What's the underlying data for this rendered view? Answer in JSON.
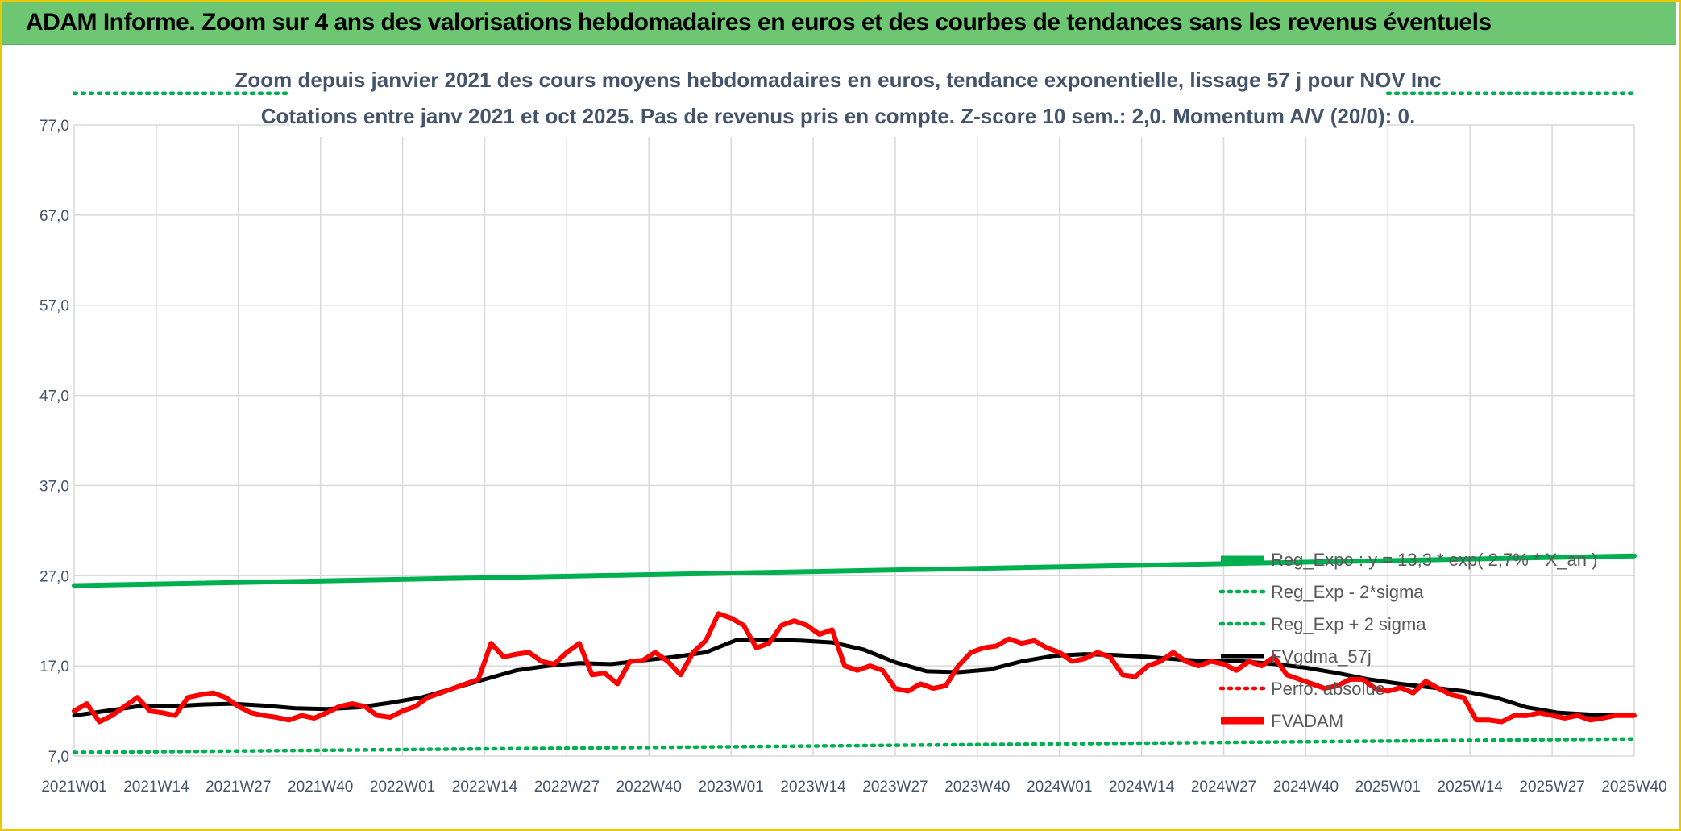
{
  "header": {
    "title": "ADAM Informe. Zoom sur 4 ans des valorisations hebdomadaires en euros et des courbes de tendances sans les revenus éventuels"
  },
  "chart_data": {
    "type": "line",
    "title_line1": "Zoom depuis janvier 2021 des cours moyens hebdomadaires en euros, tendance exponentielle, lissage 57 j pour NOV Inc",
    "title_line2": "Cotations entre janv 2021 et oct 2025. Pas de revenus pris en compte. Z-score 10 sem.: 2,0. Momentum A/V (20/0): 0.",
    "ylim": [
      7,
      77
    ],
    "y_ticks": [
      "77,0",
      "67,0",
      "57,0",
      "47,0",
      "37,0",
      "27,0",
      "17,0",
      "7,0"
    ],
    "y_tick_values": [
      77,
      67,
      57,
      47,
      37,
      27,
      17,
      7
    ],
    "x_ticks": [
      "2021W01",
      "2021W14",
      "2021W27",
      "2021W40",
      "2022W01",
      "2022W14",
      "2022W27",
      "2022W40",
      "2023W01",
      "2023W14",
      "2023W27",
      "2023W40",
      "2024W01",
      "2024W14",
      "2024W27",
      "2024W40",
      "2025W01",
      "2025W14",
      "2025W27",
      "2025W40"
    ],
    "x_range_weeks": [
      0,
      247
    ],
    "grid": true,
    "legend_position": "right",
    "series": [
      {
        "name": "Reg_Expo : y = 13,3 * exp( 2,7% * X_an )",
        "key": "reg",
        "color": "#00b050",
        "style": "solid-thick",
        "x": [
          0,
          247
        ],
        "values": [
          25.9,
          29.2
        ]
      },
      {
        "name": "Reg_Exp - 2*sigma",
        "key": "lower",
        "color": "#00b050",
        "style": "dotted",
        "x": [
          0,
          247
        ],
        "values": [
          7.4,
          8.9
        ]
      },
      {
        "name": "Reg_Exp + 2 sigma",
        "key": "upper",
        "color": "#00b050",
        "style": "dotted",
        "x": [
          0,
          247
        ],
        "values": [
          80.5,
          80.5
        ]
      },
      {
        "name": "FVgdma_57j",
        "key": "sma",
        "color": "#000000",
        "style": "solid",
        "x": [
          0,
          5,
          10,
          15,
          20,
          25,
          30,
          35,
          40,
          45,
          50,
          55,
          60,
          65,
          70,
          75,
          80,
          85,
          90,
          95,
          100,
          105,
          110,
          115,
          120,
          125,
          130,
          135,
          140,
          145,
          150,
          155,
          160,
          165,
          170,
          175,
          180,
          185,
          190,
          195,
          200,
          205,
          210,
          215,
          220,
          225,
          230,
          235,
          240,
          247
        ],
        "values": [
          11.5,
          12.0,
          12.5,
          12.5,
          12.7,
          12.8,
          12.6,
          12.3,
          12.2,
          12.4,
          12.9,
          13.5,
          14.5,
          15.5,
          16.5,
          17.0,
          17.3,
          17.2,
          17.6,
          18.0,
          18.5,
          19.9,
          19.9,
          19.8,
          19.6,
          18.8,
          17.4,
          16.4,
          16.3,
          16.6,
          17.5,
          18.1,
          18.3,
          18.2,
          18.0,
          17.7,
          17.5,
          17.5,
          17.2,
          16.8,
          16.2,
          15.5,
          15.0,
          14.6,
          14.2,
          13.5,
          12.4,
          11.8,
          11.6,
          11.5
        ]
      },
      {
        "name": "Perfo. absolue",
        "key": "perfo",
        "color": "#ff0000",
        "style": "dotted",
        "x": [],
        "values": []
      },
      {
        "name": "FVADAM",
        "key": "price",
        "color": "#ff0000",
        "style": "solid-thick",
        "x": [
          0,
          2,
          4,
          6,
          8,
          10,
          12,
          14,
          16,
          18,
          20,
          22,
          24,
          26,
          28,
          30,
          32,
          34,
          36,
          38,
          40,
          42,
          44,
          46,
          48,
          50,
          52,
          54,
          56,
          58,
          60,
          62,
          64,
          66,
          68,
          70,
          72,
          74,
          76,
          78,
          80,
          82,
          84,
          86,
          88,
          90,
          92,
          94,
          96,
          98,
          100,
          102,
          104,
          106,
          108,
          110,
          112,
          114,
          116,
          118,
          120,
          122,
          124,
          126,
          128,
          130,
          132,
          134,
          136,
          138,
          140,
          142,
          144,
          146,
          148,
          150,
          152,
          154,
          156,
          158,
          160,
          162,
          164,
          166,
          168,
          170,
          172,
          174,
          176,
          178,
          180,
          182,
          184,
          186,
          188,
          190,
          192,
          194,
          196,
          198,
          200,
          202,
          204,
          206,
          208,
          210,
          212,
          214,
          216,
          218,
          220,
          222,
          224,
          226,
          228,
          230,
          232,
          234,
          236,
          238,
          240,
          242,
          244,
          247
        ],
        "values": [
          12.0,
          12.8,
          10.8,
          11.5,
          12.5,
          13.5,
          12.0,
          11.8,
          11.5,
          13.5,
          13.8,
          14.0,
          13.5,
          12.5,
          11.8,
          11.5,
          11.3,
          11.0,
          11.5,
          11.2,
          11.8,
          12.5,
          12.8,
          12.5,
          11.5,
          11.3,
          12.0,
          12.5,
          13.5,
          14.0,
          14.5,
          15.0,
          15.5,
          19.5,
          18.0,
          18.3,
          18.5,
          17.5,
          17.2,
          18.5,
          19.5,
          16.0,
          16.2,
          15.0,
          17.5,
          17.6,
          18.5,
          17.5,
          16.0,
          18.5,
          19.8,
          22.8,
          22.3,
          21.5,
          19.0,
          19.5,
          21.5,
          22.0,
          21.5,
          20.5,
          21.0,
          17.0,
          16.5,
          17.0,
          16.5,
          14.5,
          14.2,
          15.0,
          14.5,
          14.8,
          17.0,
          18.5,
          19.0,
          19.2,
          20.0,
          19.5,
          19.8,
          19.0,
          18.5,
          17.5,
          17.8,
          18.5,
          18.0,
          16.0,
          15.8,
          17.0,
          17.5,
          18.5,
          17.5,
          17.0,
          17.5,
          17.2,
          16.5,
          17.5,
          17.0,
          18.0,
          16.0,
          15.5,
          15.0,
          14.5,
          14.8,
          15.5,
          15.5,
          14.5,
          14.2,
          14.6,
          14.0,
          15.3,
          14.5,
          13.8,
          13.5,
          11.0,
          11.0,
          10.8,
          11.5,
          11.5,
          11.8,
          11.5,
          11.2,
          11.5,
          11.0,
          11.2,
          11.5,
          11.5
        ]
      }
    ]
  }
}
